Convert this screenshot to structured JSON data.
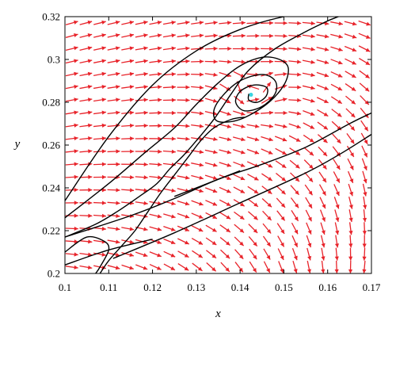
{
  "chart_data": {
    "type": "phase-portrait",
    "title": "",
    "xlabel": "x",
    "ylabel": "y",
    "xlim": [
      0.1,
      0.17
    ],
    "ylim": [
      0.2,
      0.32
    ],
    "x_ticks": [
      "0.1",
      "0.11",
      "0.12",
      "0.13",
      "0.14",
      "0.15",
      "0.16",
      "0.17"
    ],
    "y_ticks": [
      "0.2",
      "0.22",
      "0.24",
      "0.26",
      "0.28",
      "0.3",
      "0.32"
    ],
    "grid": false,
    "legend": "none",
    "colors": {
      "vector_field": "#e8232a",
      "trajectories": "#000000",
      "equilibrium": "#38d4e0"
    },
    "vector_field_grid": {
      "columns": 22,
      "rows": 20
    },
    "equilibrium_point": {
      "x": 0.1425,
      "y": 0.2835
    },
    "trajectories": [
      {
        "points": [
          [
            0.1,
            0.217
          ],
          [
            0.107,
            0.223
          ],
          [
            0.112,
            0.229
          ],
          [
            0.117,
            0.236
          ],
          [
            0.121,
            0.242
          ],
          [
            0.124,
            0.249
          ],
          [
            0.127,
            0.255
          ],
          [
            0.13,
            0.262
          ],
          [
            0.134,
            0.272
          ],
          [
            0.138,
            0.284
          ],
          [
            0.142,
            0.295
          ],
          [
            0.148,
            0.305
          ],
          [
            0.155,
            0.313
          ],
          [
            0.16,
            0.318
          ],
          [
            0.163,
            0.321
          ],
          [
            0.158,
            0.322
          ],
          [
            0.15,
            0.32
          ],
          [
            0.14,
            0.314
          ],
          [
            0.13,
            0.304
          ],
          [
            0.12,
            0.288
          ],
          [
            0.11,
            0.264
          ],
          [
            0.1,
            0.234
          ]
        ]
      },
      {
        "points": [
          [
            0.1,
            0.226
          ],
          [
            0.11,
            0.242
          ],
          [
            0.118,
            0.256
          ],
          [
            0.125,
            0.268
          ],
          [
            0.13,
            0.279
          ],
          [
            0.135,
            0.289
          ],
          [
            0.14,
            0.297
          ],
          [
            0.145,
            0.301
          ],
          [
            0.149,
            0.3
          ],
          [
            0.151,
            0.296
          ],
          [
            0.15,
            0.288
          ],
          [
            0.146,
            0.279
          ],
          [
            0.14,
            0.272
          ],
          [
            0.135,
            0.271
          ],
          [
            0.134,
            0.276
          ],
          [
            0.136,
            0.283
          ],
          [
            0.14,
            0.29
          ],
          [
            0.145,
            0.293
          ],
          [
            0.148,
            0.29
          ],
          [
            0.148,
            0.284
          ],
          [
            0.145,
            0.278
          ],
          [
            0.141,
            0.276
          ],
          [
            0.139,
            0.28
          ],
          [
            0.14,
            0.285
          ],
          [
            0.143,
            0.288
          ],
          [
            0.146,
            0.287
          ],
          [
            0.146,
            0.283
          ],
          [
            0.144,
            0.28
          ],
          [
            0.142,
            0.281
          ],
          [
            0.142,
            0.284
          ]
        ]
      },
      {
        "points": [
          [
            0.108,
            0.2
          ],
          [
            0.11,
            0.206
          ],
          [
            0.113,
            0.213
          ],
          [
            0.116,
            0.22
          ],
          [
            0.119,
            0.229
          ],
          [
            0.122,
            0.238
          ],
          [
            0.125,
            0.246
          ],
          [
            0.128,
            0.254
          ],
          [
            0.131,
            0.262
          ],
          [
            0.134,
            0.268
          ],
          [
            0.138,
            0.272
          ],
          [
            0.141,
            0.273
          ]
        ]
      },
      {
        "points": [
          [
            0.107,
            0.2
          ],
          [
            0.108,
            0.203
          ],
          [
            0.11,
            0.211
          ],
          [
            0.109,
            0.215
          ],
          [
            0.105,
            0.217
          ],
          [
            0.1,
            0.21
          ]
        ]
      },
      {
        "points": [
          [
            0.1,
            0.204
          ],
          [
            0.11,
            0.211
          ],
          [
            0.12,
            0.216
          ]
        ]
      },
      {
        "points": [
          [
            0.1,
            0.217
          ],
          [
            0.115,
            0.227
          ],
          [
            0.125,
            0.235
          ],
          [
            0.135,
            0.244
          ],
          [
            0.145,
            0.251
          ],
          [
            0.155,
            0.259
          ],
          [
            0.165,
            0.27
          ],
          [
            0.17,
            0.275
          ]
        ]
      },
      {
        "points": [
          [
            0.111,
            0.207
          ],
          [
            0.125,
            0.219
          ],
          [
            0.14,
            0.233
          ],
          [
            0.155,
            0.247
          ],
          [
            0.163,
            0.256
          ],
          [
            0.17,
            0.265
          ]
        ]
      },
      {
        "points": [
          [
            0.125,
            0.236
          ],
          [
            0.135,
            0.244
          ],
          [
            0.14,
            0.248
          ]
        ]
      }
    ]
  }
}
